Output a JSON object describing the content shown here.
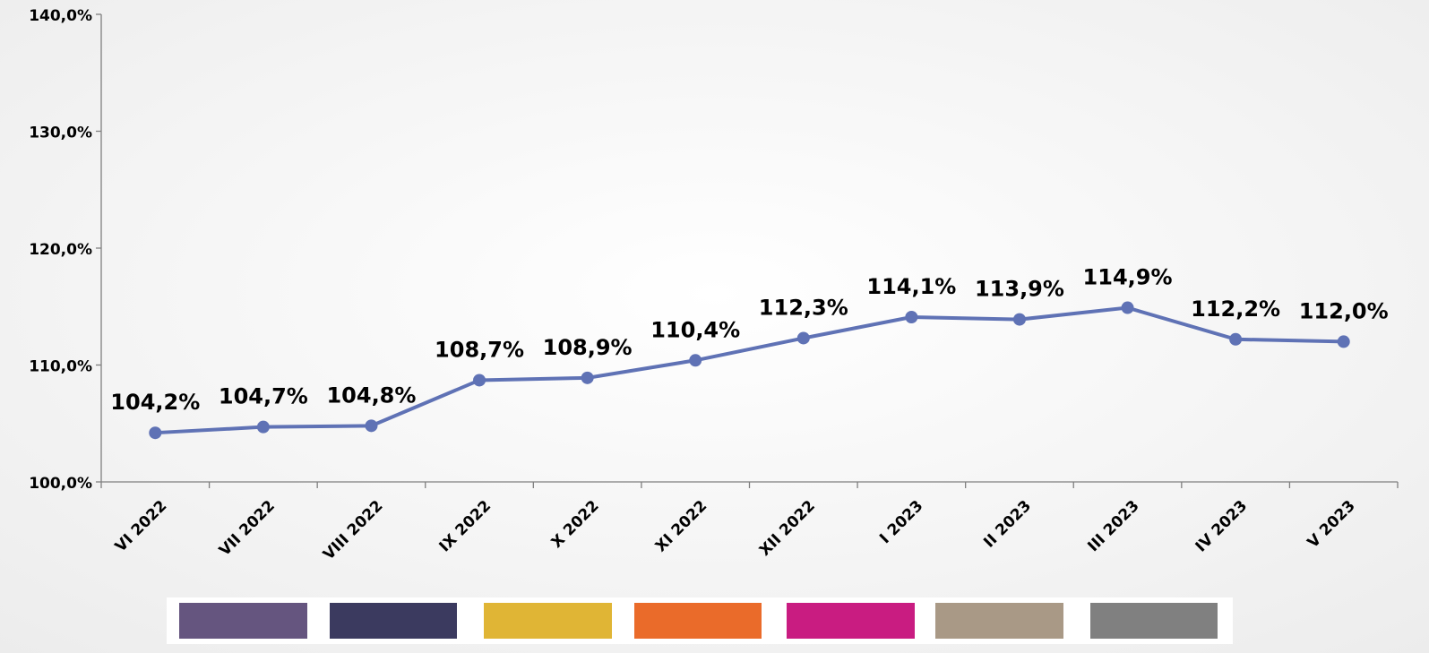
{
  "chart_data": {
    "type": "line",
    "categories": [
      "VI 2022",
      "VII 2022",
      "VIII 2022",
      "IX 2022",
      "X 2022",
      "XI 2022",
      "XII 2022",
      "I 2023",
      "II 2023",
      "III 2023",
      "IV 2023",
      "V 2023"
    ],
    "series": [
      {
        "color": "#5f72b5",
        "values": [
          104.2,
          104.7,
          104.8,
          108.7,
          108.9,
          110.4,
          112.3,
          114.1,
          113.9,
          114.9,
          112.2,
          112.0
        ],
        "value_labels": [
          "104,2%",
          "104,7%",
          "104,8%",
          "108,7%",
          "108,9%",
          "110,4%",
          "112,3%",
          "114,1%",
          "113,9%",
          "114,9%",
          "112,2%",
          "112,0%"
        ]
      }
    ],
    "ylim": [
      100,
      140
    ],
    "yticks": [
      {
        "value": 100,
        "label": "100,0%"
      },
      {
        "value": 110,
        "label": "110,0%"
      },
      {
        "value": 120,
        "label": "120,0%"
      },
      {
        "value": 130,
        "label": "130,0%"
      },
      {
        "value": 140,
        "label": "140,0%"
      }
    ]
  }
}
